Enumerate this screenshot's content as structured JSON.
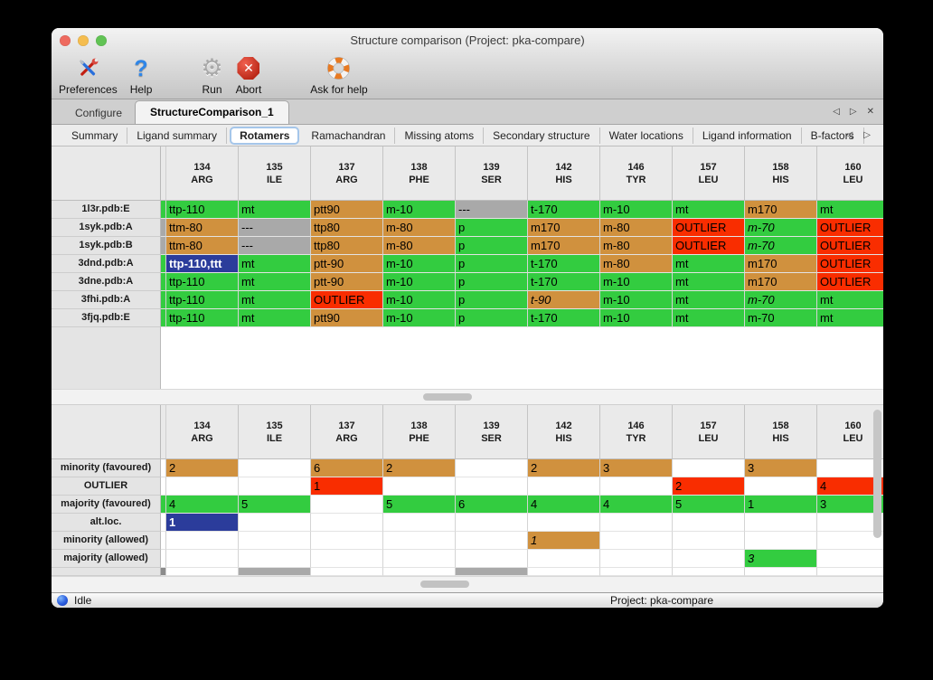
{
  "window": {
    "title": "Structure comparison (Project: pka-compare)",
    "traffic_lights": [
      "close",
      "minimize",
      "zoom"
    ]
  },
  "toolbar": [
    {
      "label": "Preferences",
      "icon": "tools-icon"
    },
    {
      "label": "Help",
      "icon": "question-icon"
    },
    {
      "label": "Run",
      "icon": "gear-icon"
    },
    {
      "label": "Abort",
      "icon": "abort-icon"
    },
    {
      "label": "Ask for help",
      "icon": "lifebuoy-icon"
    }
  ],
  "tabs": [
    {
      "label": "Configure",
      "active": false
    },
    {
      "label": "StructureComparison_1",
      "active": true
    }
  ],
  "tab_controls": {
    "row1": [
      {
        "name": "prev-tab-icon",
        "glyph": "◁"
      },
      {
        "name": "next-tab-icon",
        "glyph": "▷"
      },
      {
        "name": "close-tab-icon",
        "glyph": "✕"
      }
    ],
    "row2": [
      {
        "name": "prev-subtab-icon",
        "glyph": "◁"
      },
      {
        "name": "next-subtab-icon",
        "glyph": "▷"
      }
    ]
  },
  "subtabs": {
    "selected": "Rotamers",
    "items": [
      "Summary",
      "Ligand summary",
      "Rotamers",
      "Ramachandran",
      "Missing atoms",
      "Secondary structure",
      "Water locations",
      "Ligand information",
      "B-factors"
    ]
  },
  "colors": {
    "green": "#33cc40",
    "orange": "#d0913e",
    "red": "#f92d00",
    "gray": "#a9a9a9",
    "blue": "#2b3c9b",
    "darkgray": "#8b8b8b"
  },
  "columns": [
    {
      "num": "134",
      "res": "ARG"
    },
    {
      "num": "135",
      "res": "ILE"
    },
    {
      "num": "137",
      "res": "ARG"
    },
    {
      "num": "138",
      "res": "PHE"
    },
    {
      "num": "139",
      "res": "SER"
    },
    {
      "num": "142",
      "res": "HIS"
    },
    {
      "num": "146",
      "res": "TYR"
    },
    {
      "num": "157",
      "res": "LEU"
    },
    {
      "num": "158",
      "res": "HIS"
    },
    {
      "num": "160",
      "res": "LEU"
    }
  ],
  "top_table": {
    "rows": [
      {
        "label": "1l3r.pdb:E",
        "edge": "green",
        "cells": [
          [
            "ttp-110",
            "green"
          ],
          [
            "mt",
            "green"
          ],
          [
            "ptt90",
            "orange"
          ],
          [
            "m-10",
            "green"
          ],
          [
            "---",
            "gray"
          ],
          [
            "t-170",
            "green"
          ],
          [
            "m-10",
            "green"
          ],
          [
            "mt",
            "green"
          ],
          [
            "m170",
            "orange"
          ],
          [
            "mt",
            "green"
          ]
        ]
      },
      {
        "label": "1syk.pdb:A",
        "edge": "gray",
        "cells": [
          [
            "ttm-80",
            "orange"
          ],
          [
            "---",
            "gray"
          ],
          [
            "ttp80",
            "orange"
          ],
          [
            "m-80",
            "orange"
          ],
          [
            "p",
            "green"
          ],
          [
            "m170",
            "orange"
          ],
          [
            "m-80",
            "orange"
          ],
          [
            "OUTLIER",
            "red"
          ],
          [
            "m-70",
            "green",
            "i"
          ],
          [
            "OUTLIER",
            "red"
          ]
        ]
      },
      {
        "label": "1syk.pdb:B",
        "edge": "gray",
        "cells": [
          [
            "ttm-80",
            "orange"
          ],
          [
            "---",
            "gray"
          ],
          [
            "ttp80",
            "orange"
          ],
          [
            "m-80",
            "orange"
          ],
          [
            "p",
            "green"
          ],
          [
            "m170",
            "orange"
          ],
          [
            "m-80",
            "orange"
          ],
          [
            "OUTLIER",
            "red"
          ],
          [
            "m-70",
            "green",
            "i"
          ],
          [
            "OUTLIER",
            "red"
          ]
        ]
      },
      {
        "label": "3dnd.pdb:A",
        "edge": "green",
        "cells": [
          [
            "ttp-110,ttt",
            "blue"
          ],
          [
            "mt",
            "green"
          ],
          [
            "ptt-90",
            "orange"
          ],
          [
            "m-10",
            "green"
          ],
          [
            "p",
            "green"
          ],
          [
            "t-170",
            "green"
          ],
          [
            "m-80",
            "orange"
          ],
          [
            "mt",
            "green"
          ],
          [
            "m170",
            "orange"
          ],
          [
            "OUTLIER",
            "red"
          ]
        ]
      },
      {
        "label": "3dne.pdb:A",
        "edge": "green",
        "cells": [
          [
            "ttp-110",
            "green"
          ],
          [
            "mt",
            "green"
          ],
          [
            "ptt-90",
            "orange"
          ],
          [
            "m-10",
            "green"
          ],
          [
            "p",
            "green"
          ],
          [
            "t-170",
            "green"
          ],
          [
            "m-10",
            "green"
          ],
          [
            "mt",
            "green"
          ],
          [
            "m170",
            "orange"
          ],
          [
            "OUTLIER",
            "red"
          ]
        ]
      },
      {
        "label": "3fhi.pdb:A",
        "edge": "green",
        "cells": [
          [
            "ttp-110",
            "green"
          ],
          [
            "mt",
            "green"
          ],
          [
            "OUTLIER",
            "red"
          ],
          [
            "m-10",
            "green"
          ],
          [
            "p",
            "green"
          ],
          [
            "t-90",
            "orange",
            "i"
          ],
          [
            "m-10",
            "green"
          ],
          [
            "mt",
            "green"
          ],
          [
            "m-70",
            "green",
            "i"
          ],
          [
            "mt",
            "green"
          ]
        ]
      },
      {
        "label": "3fjq.pdb:E",
        "edge": "green",
        "cells": [
          [
            "ttp-110",
            "green"
          ],
          [
            "mt",
            "green"
          ],
          [
            "ptt90",
            "orange"
          ],
          [
            "m-10",
            "green"
          ],
          [
            "p",
            "green"
          ],
          [
            "t-170",
            "green"
          ],
          [
            "m-10",
            "green"
          ],
          [
            "mt",
            "green"
          ],
          [
            "m-70",
            "green"
          ],
          [
            "mt",
            "green"
          ]
        ]
      }
    ]
  },
  "bottom_table": {
    "rows": [
      {
        "label": "minority (favoured)",
        "edge": "",
        "cells": [
          [
            "2",
            "orange"
          ],
          null,
          [
            "6",
            "orange"
          ],
          [
            "2",
            "orange"
          ],
          null,
          [
            "2",
            "orange"
          ],
          [
            "3",
            "orange"
          ],
          null,
          [
            "3",
            "orange"
          ],
          null
        ]
      },
      {
        "label": "OUTLIER",
        "edge": "",
        "cells": [
          null,
          null,
          [
            "1",
            "red"
          ],
          null,
          null,
          null,
          null,
          [
            "2",
            "red"
          ],
          null,
          [
            "4",
            "red"
          ]
        ]
      },
      {
        "label": "majority (favoured)",
        "edge": "green",
        "cells": [
          [
            "4",
            "green"
          ],
          [
            "5",
            "green"
          ],
          null,
          [
            "5",
            "green"
          ],
          [
            "6",
            "green"
          ],
          [
            "4",
            "green"
          ],
          [
            "4",
            "green"
          ],
          [
            "5",
            "green"
          ],
          [
            "1",
            "green"
          ],
          [
            "3",
            "green"
          ]
        ]
      },
      {
        "label": "alt.loc.",
        "edge": "",
        "cells": [
          [
            "1",
            "blue"
          ],
          null,
          null,
          null,
          null,
          null,
          null,
          null,
          null,
          null
        ]
      },
      {
        "label": "minority (allowed)",
        "edge": "",
        "cells": [
          null,
          null,
          null,
          null,
          null,
          [
            "1",
            "orange",
            "i"
          ],
          null,
          null,
          null,
          null
        ]
      },
      {
        "label": "majority (allowed)",
        "edge": "",
        "cells": [
          null,
          null,
          null,
          null,
          null,
          null,
          null,
          null,
          [
            "3",
            "green",
            "i"
          ],
          null
        ]
      }
    ],
    "partial_row": {
      "edge": "darkgray",
      "gray_columns": [
        1,
        4
      ]
    }
  },
  "statusbar": {
    "state": "Idle",
    "project": "Project: pka-compare"
  }
}
